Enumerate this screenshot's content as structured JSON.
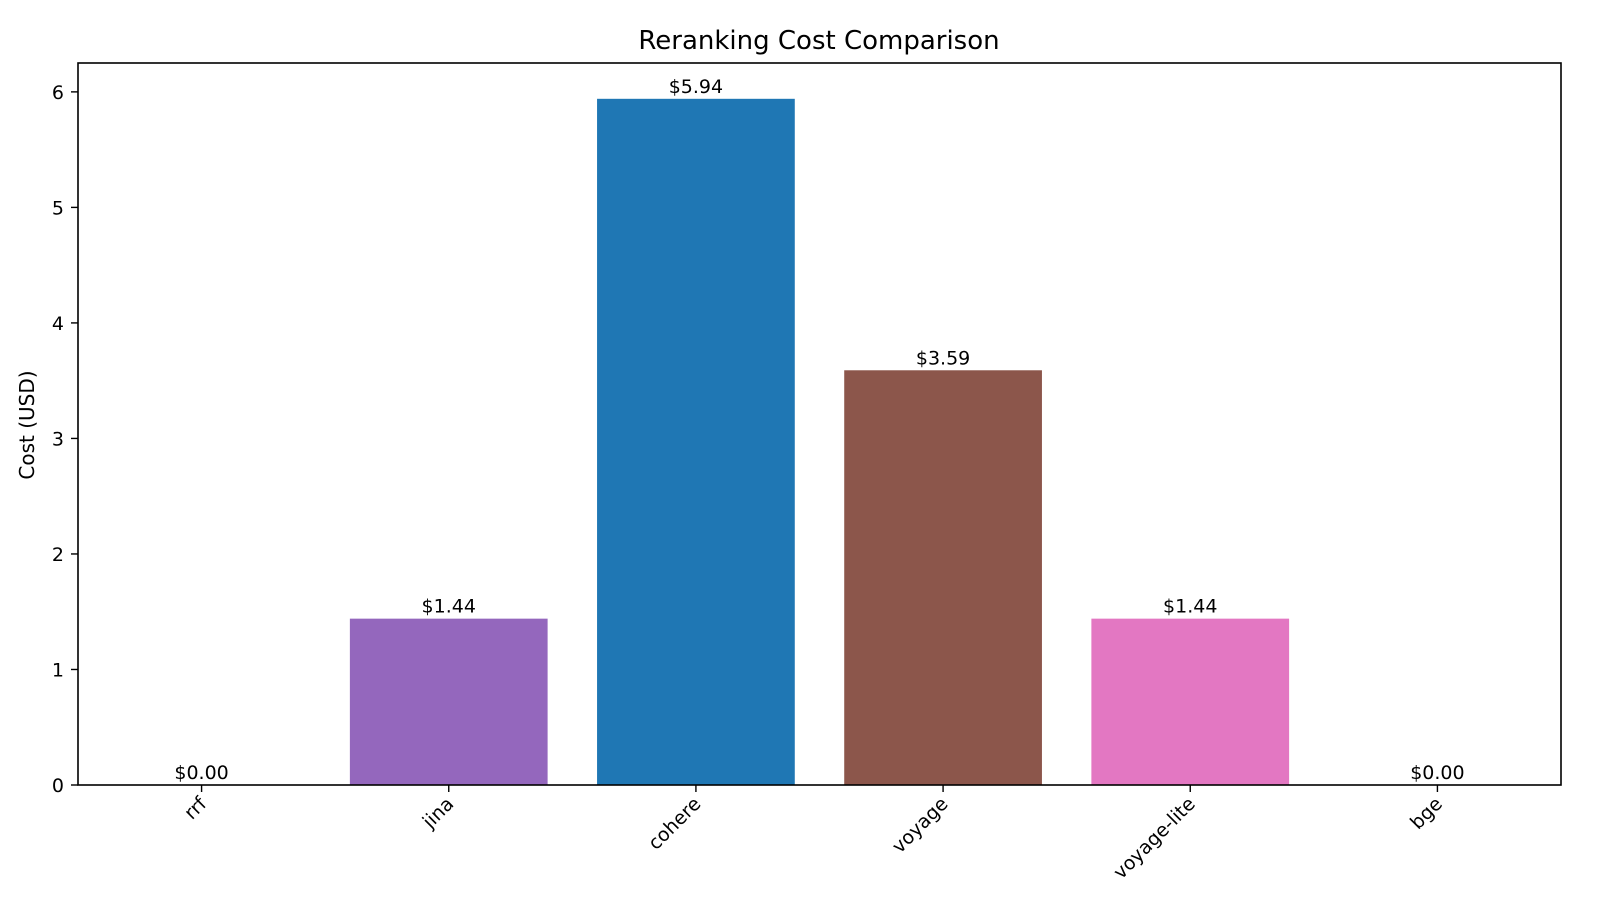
{
  "chart_data": {
    "type": "bar",
    "title": "Reranking Cost Comparison",
    "xlabel": "",
    "ylabel": "Cost (USD)",
    "categories": [
      "rrf",
      "jina",
      "cohere",
      "voyage",
      "voyage-lite",
      "bge"
    ],
    "values": [
      0.0,
      1.44,
      5.94,
      3.59,
      1.44,
      0.0
    ],
    "value_labels": [
      "$0.00",
      "$1.44",
      "$5.94",
      "$3.59",
      "$1.44",
      "$0.00"
    ],
    "colors": [
      "#9a9a9a",
      "#9467bd",
      "#1f77b4",
      "#8c564b",
      "#e377c2",
      "#7f7f7f"
    ],
    "ylim": [
      0,
      6.25
    ],
    "yticks": [
      0,
      1,
      2,
      3,
      4,
      5,
      6
    ],
    "grid": false,
    "legend": "none"
  }
}
